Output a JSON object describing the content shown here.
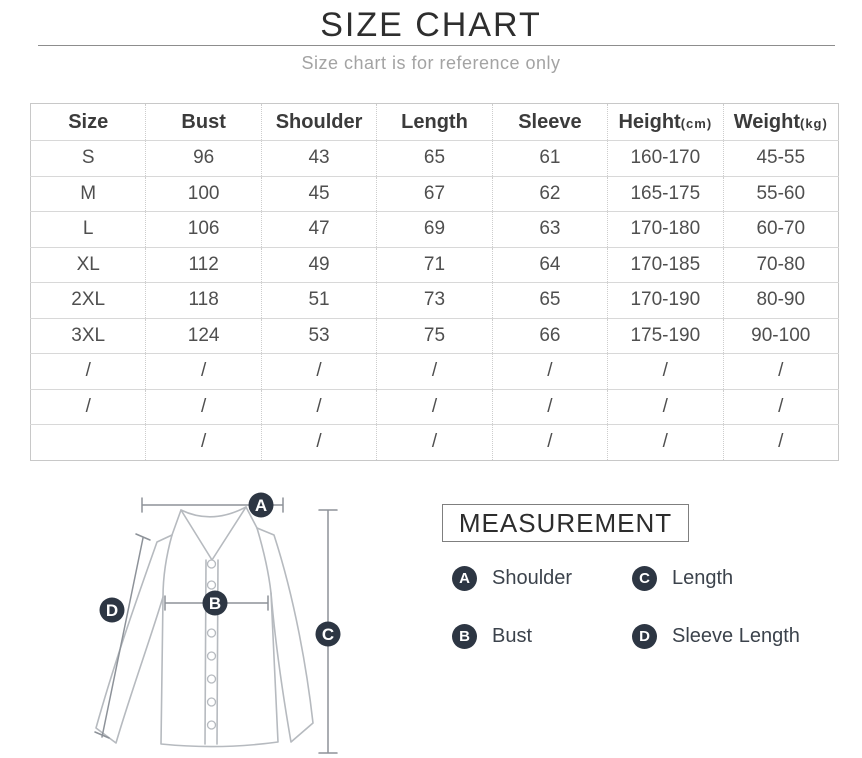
{
  "page": {
    "title": "SIZE CHART",
    "subtitle": "Size chart is for reference only"
  },
  "table": {
    "headers": [
      {
        "label": "Size",
        "unit": ""
      },
      {
        "label": "Bust",
        "unit": ""
      },
      {
        "label": "Shoulder",
        "unit": ""
      },
      {
        "label": "Length",
        "unit": ""
      },
      {
        "label": "Sleeve",
        "unit": ""
      },
      {
        "label": "Height",
        "unit": "(cm)"
      },
      {
        "label": "Weight",
        "unit": "(kg)"
      }
    ],
    "rows": [
      [
        "S",
        "96",
        "43",
        "65",
        "61",
        "160-170",
        "45-55"
      ],
      [
        "M",
        "100",
        "45",
        "67",
        "62",
        "165-175",
        "55-60"
      ],
      [
        "L",
        "106",
        "47",
        "69",
        "63",
        "170-180",
        "60-70"
      ],
      [
        "XL",
        "112",
        "49",
        "71",
        "64",
        "170-185",
        "70-80"
      ],
      [
        "2XL",
        "118",
        "51",
        "73",
        "65",
        "170-190",
        "80-90"
      ],
      [
        "3XL",
        "124",
        "53",
        "75",
        "66",
        "175-190",
        "90-100"
      ],
      [
        "/",
        "/",
        "/",
        "/",
        "/",
        "/",
        "/"
      ],
      [
        "/",
        "/",
        "/",
        "/",
        "/",
        "/",
        "/"
      ],
      [
        "",
        "/",
        "/",
        "/",
        "/",
        "/",
        "/"
      ]
    ]
  },
  "measurement": {
    "box_title": "MEASUREMENT",
    "markers": {
      "A": "A",
      "B": "B",
      "C": "C",
      "D": "D"
    },
    "legend": [
      {
        "key": "A",
        "label": "Shoulder"
      },
      {
        "key": "C",
        "label": "Length"
      },
      {
        "key": "B",
        "label": "Bust"
      },
      {
        "key": "D",
        "label": "Sleeve Length"
      }
    ]
  },
  "colors": {
    "marker_circle": "#2d3643",
    "table_border": "#c8c8c8",
    "subtitle_text": "#a3a3a3",
    "shirt_outline": "#b6babf"
  }
}
